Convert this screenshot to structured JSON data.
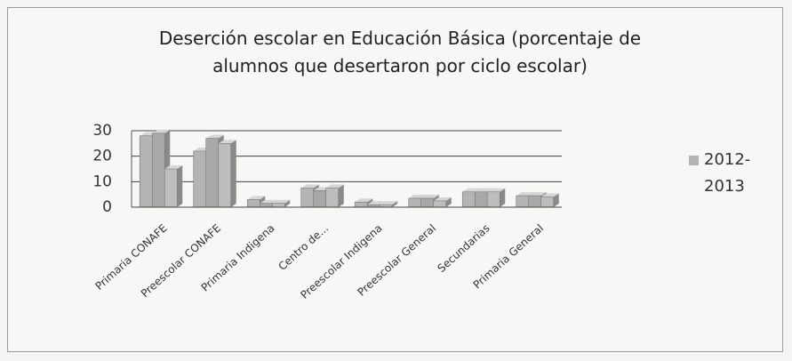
{
  "chart_data": {
    "type": "bar",
    "title": "Deserción escolar en Educación Básica (porcentaje de alumnos que desertaron por ciclo escolar)",
    "categories": [
      "Primaria CONAFE",
      "Preescolar CONAFE",
      "Primaria Indigena",
      "Centro de...",
      "Preescolar Indigena",
      "Preescolar General",
      "Secundarias",
      "Primaria General"
    ],
    "series": [
      {
        "name": "2012-2013",
        "color": "#b4b4b4",
        "values": [
          28,
          22,
          3,
          7.5,
          2,
          3.5,
          6,
          4.5
        ]
      },
      {
        "color": "#a8a8a8",
        "values": [
          29,
          27,
          1.5,
          6.5,
          1,
          3.5,
          6,
          4.5
        ]
      },
      {
        "color": "#bdbdbd",
        "values": [
          15,
          25,
          1.5,
          7.5,
          1,
          2.5,
          6,
          4
        ]
      }
    ],
    "ylim": [
      0,
      30
    ],
    "yticks": [
      0,
      10,
      20,
      30
    ],
    "grid": true
  }
}
